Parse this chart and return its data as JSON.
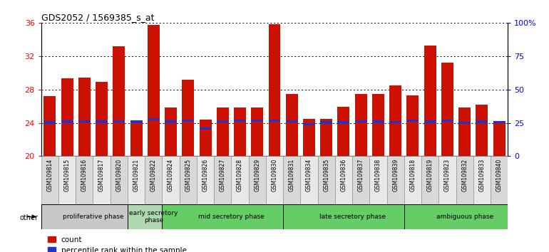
{
  "title": "GDS2052 / 1569385_s_at",
  "samples": [
    "GSM109814",
    "GSM109815",
    "GSM109816",
    "GSM109817",
    "GSM109820",
    "GSM109821",
    "GSM109822",
    "GSM109824",
    "GSM109825",
    "GSM109826",
    "GSM109827",
    "GSM109828",
    "GSM109829",
    "GSM109830",
    "GSM109831",
    "GSM109834",
    "GSM109835",
    "GSM109836",
    "GSM109837",
    "GSM109838",
    "GSM109839",
    "GSM109818",
    "GSM109819",
    "GSM109823",
    "GSM109832",
    "GSM109833",
    "GSM109840"
  ],
  "counts": [
    27.2,
    29.3,
    29.4,
    28.9,
    33.2,
    24.0,
    35.7,
    25.8,
    29.2,
    24.4,
    25.8,
    25.8,
    25.8,
    35.8,
    27.5,
    24.5,
    24.5,
    25.9,
    27.5,
    27.5,
    28.5,
    27.3,
    33.3,
    31.2,
    25.8,
    26.2,
    24.1
  ],
  "percentiles": [
    23.9,
    24.0,
    24.05,
    24.0,
    24.05,
    24.0,
    24.3,
    24.0,
    24.1,
    23.2,
    24.05,
    24.1,
    24.15,
    24.1,
    24.05,
    23.7,
    23.9,
    23.9,
    24.05,
    24.0,
    23.95,
    24.1,
    24.0,
    24.1,
    23.85,
    24.0,
    23.95
  ],
  "ylim_left": [
    20,
    36
  ],
  "ylim_right": [
    0,
    100
  ],
  "yticks_left": [
    20,
    24,
    28,
    32,
    36
  ],
  "yticks_right": [
    0,
    25,
    50,
    75,
    100
  ],
  "bar_color": "#cc1100",
  "pct_color": "#2233cc",
  "phases": [
    {
      "label": "proliferative phase",
      "start": 0,
      "end": 5,
      "color": "#c8c8c8"
    },
    {
      "label": "early secretory\nphase",
      "start": 5,
      "end": 7,
      "color": "#b0d8b0"
    },
    {
      "label": "mid secretory phase",
      "start": 7,
      "end": 14,
      "color": "#66cc66"
    },
    {
      "label": "late secretory phase",
      "start": 14,
      "end": 21,
      "color": "#66cc66"
    },
    {
      "label": "ambiguous phase",
      "start": 21,
      "end": 27,
      "color": "#66cc66"
    }
  ],
  "legend_count": "count",
  "legend_pct": "percentile rank within the sample"
}
